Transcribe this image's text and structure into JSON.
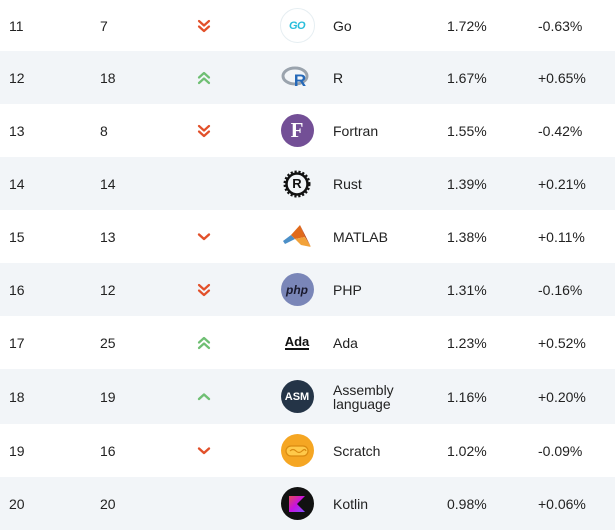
{
  "colors": {
    "down_arrow": "#e2502a",
    "up_arrow": "#6fbf73",
    "row_shade": "#f2f5f8"
  },
  "rows": [
    {
      "rank": "11",
      "prev": "7",
      "change": "double-down",
      "icon": "go-logo-icon",
      "logo_text": "GO",
      "name": "Go",
      "rating": "1.72%",
      "delta": "-0.63%"
    },
    {
      "rank": "12",
      "prev": "18",
      "change": "double-up",
      "icon": "r-logo-icon",
      "logo_text": "R",
      "name": "R",
      "rating": "1.67%",
      "delta": "+0.65%"
    },
    {
      "rank": "13",
      "prev": "8",
      "change": "double-down",
      "icon": "fortran-logo-icon",
      "logo_text": "F",
      "name": "Fortran",
      "rating": "1.55%",
      "delta": "-0.42%"
    },
    {
      "rank": "14",
      "prev": "14",
      "change": "none",
      "icon": "rust-logo-icon",
      "logo_text": "R",
      "name": "Rust",
      "rating": "1.39%",
      "delta": "+0.21%"
    },
    {
      "rank": "15",
      "prev": "13",
      "change": "down",
      "icon": "matlab-logo-icon",
      "logo_text": "",
      "name": "MATLAB",
      "rating": "1.38%",
      "delta": "+0.11%"
    },
    {
      "rank": "16",
      "prev": "12",
      "change": "double-down",
      "icon": "php-logo-icon",
      "logo_text": "php",
      "name": "PHP",
      "rating": "1.31%",
      "delta": "-0.16%"
    },
    {
      "rank": "17",
      "prev": "25",
      "change": "double-up",
      "icon": "ada-logo-icon",
      "logo_text": "Ada",
      "name": "Ada",
      "rating": "1.23%",
      "delta": "+0.52%"
    },
    {
      "rank": "18",
      "prev": "19",
      "change": "up",
      "icon": "assembly-logo-icon",
      "logo_text": "ASM",
      "name": "Assembly language",
      "rating": "1.16%",
      "delta": "+0.20%"
    },
    {
      "rank": "19",
      "prev": "16",
      "change": "down",
      "icon": "scratch-logo-icon",
      "logo_text": "",
      "name": "Scratch",
      "rating": "1.02%",
      "delta": "-0.09%"
    },
    {
      "rank": "20",
      "prev": "20",
      "change": "none",
      "icon": "kotlin-logo-icon",
      "logo_text": "",
      "name": "Kotlin",
      "rating": "0.98%",
      "delta": "+0.06%"
    }
  ]
}
